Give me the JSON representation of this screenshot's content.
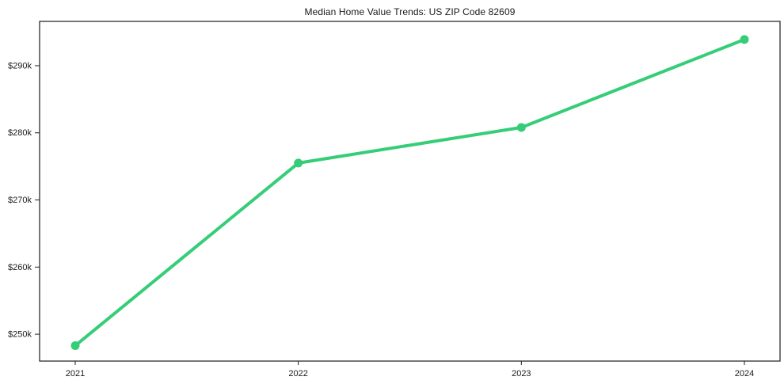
{
  "chart_data": {
    "type": "line",
    "title": "Median Home Value Trends: US ZIP Code 82609",
    "x": [
      "2021",
      "2022",
      "2023",
      "2024"
    ],
    "series": [
      {
        "name": "Median Home Value",
        "values": [
          248300,
          275500,
          280800,
          293900
        ]
      }
    ],
    "xlabel": "",
    "ylabel": "",
    "ytick_values": [
      250000,
      260000,
      270000,
      280000,
      290000
    ],
    "ytick_labels": [
      "$250k",
      "$260k",
      "$270k",
      "$280k",
      "$290k"
    ],
    "ylim": [
      246000,
      296600
    ],
    "grid": false,
    "legend_position": "none",
    "line_color": "#36cd78",
    "marker": "circle",
    "frame_color": "#1c1c1c"
  }
}
